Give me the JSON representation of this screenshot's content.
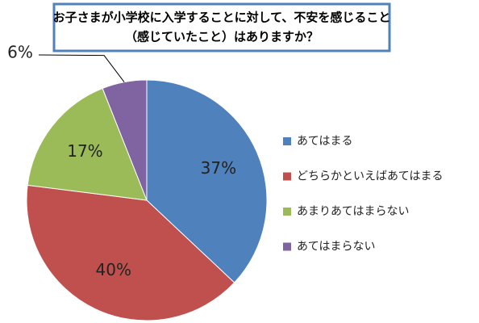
{
  "chart_data": {
    "type": "pie",
    "title": [
      "お子さまが小学校に入学することに対して、不安を感じること",
      "（感じていたこと）はありますか？"
    ],
    "categories": [
      "あてはまる",
      "どちらかといえばあてはまる",
      "あまりあてはまらない",
      "あてはまらない"
    ],
    "values": [
      37,
      40,
      17,
      6
    ],
    "value_labels": [
      "37%",
      "40%",
      "17%",
      "6%"
    ],
    "colors": [
      "#4f81bd",
      "#c0504d",
      "#9bbb59",
      "#8064a2"
    ],
    "legend": "right"
  }
}
